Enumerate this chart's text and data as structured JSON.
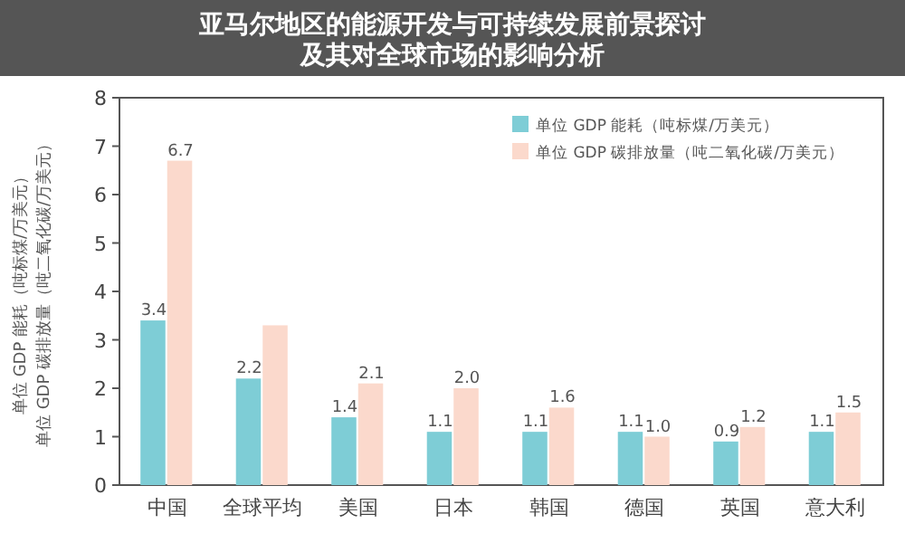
{
  "chart_data": {
    "type": "bar",
    "title": "亚马尔地区的能源开发与可持续发展前景探讨及其对全球市场的影响分析",
    "ylabel": "单位 GDP 能耗（吨标煤/万美元）单位 GDP 碳排放量（吨二氧化碳/万美元）",
    "categories": [
      "中国",
      "全球平均",
      "美国",
      "日本",
      "韩国",
      "德国",
      "英国",
      "意大利"
    ],
    "series": [
      {
        "name": "单位 GDP 能耗（吨标煤/万美元）",
        "color": "#7ecdd6",
        "values": [
          3.4,
          2.2,
          1.4,
          1.1,
          1.1,
          1.1,
          0.9,
          1.1
        ],
        "value_labels": [
          "3.4",
          "2.2",
          "1.4",
          "1.1",
          "1.1",
          "1.1",
          "0.9",
          "1.1"
        ]
      },
      {
        "name": "单位 GDP 碳排放量（吨二氧化碳/万美元）",
        "color": "#fbd9cc",
        "values": [
          6.7,
          3.3,
          2.1,
          2.0,
          1.6,
          1.0,
          1.2,
          1.5
        ],
        "value_labels": [
          "6.7",
          null,
          "2.1",
          "2.0",
          "1.6",
          "1.0",
          "1.2",
          "1.5"
        ]
      }
    ],
    "ylim": [
      0,
      8
    ],
    "yticks": [
      0,
      1,
      2,
      3,
      4,
      5,
      6,
      7,
      8
    ],
    "legend": "top right",
    "grid": false
  }
}
